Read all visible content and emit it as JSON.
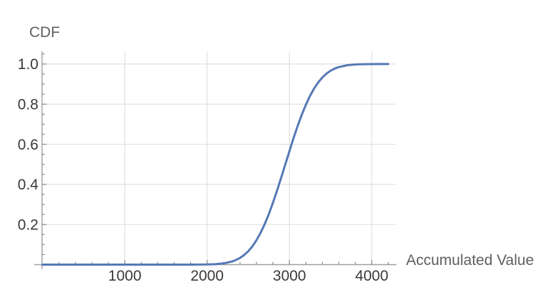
{
  "page": {
    "background": "#ffffff"
  },
  "colors": {
    "curve": "#5679b5",
    "grid": "#e0e0e0",
    "axis": "#a0a0a0",
    "tick": "#8a8a8a",
    "tick_label": "#3a3a3a",
    "axis_title": "#5f5f5f"
  },
  "chart_data": {
    "type": "line",
    "title": "",
    "xlabel": "Accumulated Value",
    "ylabel": "CDF",
    "xlim": [
      0,
      4300
    ],
    "ylim": [
      0,
      1.06
    ],
    "grid": true,
    "legend_position": "none",
    "xticks": {
      "major": [
        1000,
        2000,
        3000,
        4000
      ],
      "labels": [
        "1000",
        "2000",
        "3000",
        "4000"
      ],
      "minor_step": 200,
      "minor_max": 4200
    },
    "yticks": {
      "major": [
        0.2,
        0.4,
        0.6,
        0.8,
        1.0
      ],
      "labels": [
        "0.2",
        "0.4",
        "0.6",
        "0.8",
        "1.0"
      ],
      "minor_step": 0.05,
      "minor_max": 1.05
    },
    "series": [
      {
        "name": "CDF",
        "color": "#5679b5",
        "points": [
          [
            0,
            0
          ],
          [
            500,
            0
          ],
          [
            1000,
            0
          ],
          [
            1500,
            0
          ],
          [
            1800,
            0.0001
          ],
          [
            2000,
            0.0008
          ],
          [
            2100,
            0.0023
          ],
          [
            2200,
            0.0062
          ],
          [
            2300,
            0.0151
          ],
          [
            2350,
            0.0228
          ],
          [
            2400,
            0.0334
          ],
          [
            2450,
            0.0478
          ],
          [
            2500,
            0.0668
          ],
          [
            2550,
            0.0912
          ],
          [
            2600,
            0.1217
          ],
          [
            2650,
            0.1587
          ],
          [
            2700,
            0.2023
          ],
          [
            2750,
            0.2525
          ],
          [
            2800,
            0.3085
          ],
          [
            2850,
            0.3694
          ],
          [
            2900,
            0.4338
          ],
          [
            2950,
            0.5
          ],
          [
            3000,
            0.5662
          ],
          [
            3050,
            0.6306
          ],
          [
            3100,
            0.6915
          ],
          [
            3150,
            0.7475
          ],
          [
            3200,
            0.7977
          ],
          [
            3250,
            0.8413
          ],
          [
            3300,
            0.8783
          ],
          [
            3350,
            0.9088
          ],
          [
            3400,
            0.9332
          ],
          [
            3450,
            0.9522
          ],
          [
            3500,
            0.9666
          ],
          [
            3550,
            0.9772
          ],
          [
            3600,
            0.9849
          ],
          [
            3700,
            0.9938
          ],
          [
            3800,
            0.9977
          ],
          [
            3900,
            0.9992
          ],
          [
            4000,
            0.9998
          ],
          [
            4100,
            0.9999
          ],
          [
            4200,
            1.0
          ]
        ]
      }
    ]
  }
}
